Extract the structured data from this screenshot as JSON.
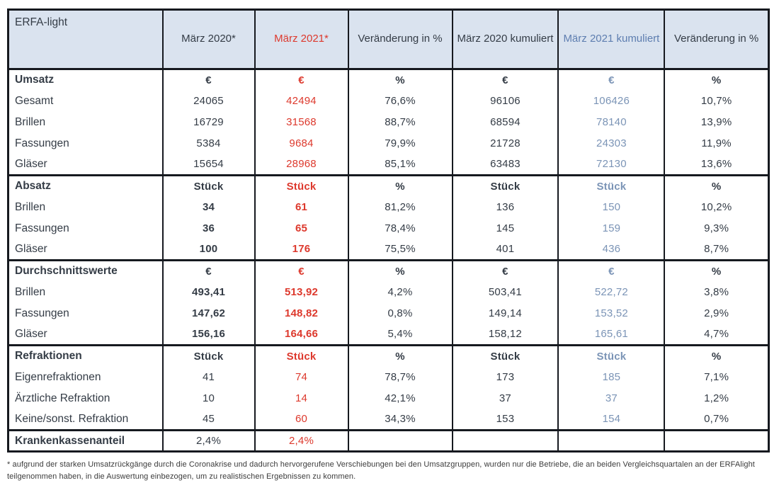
{
  "colors": {
    "header_bg": "#dae3ef",
    "border": "#16191f",
    "dark": "#343c46",
    "red": "#dd392d",
    "blue_header": "#5e7eb0",
    "blue_value": "#7b94b6",
    "footnote_color": "#3b3b3b"
  },
  "table": {
    "title": "ERFA-light",
    "columns": [
      {
        "label": "März 2020*",
        "tone": "dark"
      },
      {
        "label": "März 2021*",
        "tone": "red"
      },
      {
        "label": "Veränderung in %",
        "tone": "dark"
      },
      {
        "label": "März 2020 kumuliert",
        "tone": "dark"
      },
      {
        "label": "März 2021 kumuliert",
        "tone": "blue"
      },
      {
        "label": "Veränderung in %",
        "tone": "dark"
      }
    ],
    "sections": [
      {
        "name": "Umsatz",
        "unit_row": {
          "label": "Umsatz",
          "cells": [
            "€",
            "€",
            "%",
            "€",
            "€",
            "%"
          ]
        },
        "rows": [
          {
            "label": "Gesamt",
            "cells": [
              "24065",
              "42494",
              "76,6%",
              "96106",
              "106426",
              "10,7%"
            ]
          },
          {
            "label": "Brillen",
            "cells": [
              "16729",
              "31568",
              "88,7%",
              "68594",
              "78140",
              "13,9%"
            ]
          },
          {
            "label": "Fassungen",
            "cells": [
              "5384",
              "9684",
              "79,9%",
              "21728",
              "24303",
              "11,9%"
            ]
          },
          {
            "label": "Gläser",
            "cells": [
              "15654",
              "28968",
              "85,1%",
              "63483",
              "72130",
              "13,6%"
            ]
          }
        ]
      },
      {
        "name": "Absatz",
        "unit_row": {
          "label": "Absatz",
          "cells": [
            "Stück",
            "Stück",
            "%",
            "Stück",
            "Stück",
            "%"
          ]
        },
        "rows": [
          {
            "label": "Brillen",
            "cells": [
              "34",
              "61",
              "81,2%",
              "136",
              "150",
              "10,2%"
            ],
            "bold": [
              0,
              1
            ]
          },
          {
            "label": "Fassungen",
            "cells": [
              "36",
              "65",
              "78,4%",
              "145",
              "159",
              "9,3%"
            ],
            "bold": [
              0,
              1
            ]
          },
          {
            "label": "Gläser",
            "cells": [
              "100",
              "176",
              "75,5%",
              "401",
              "436",
              "8,7%"
            ],
            "bold": [
              0,
              1
            ]
          }
        ]
      },
      {
        "name": "Durchschnittswerte",
        "unit_row": {
          "label": "Durchschnittswerte",
          "cells": [
            "€",
            "€",
            "%",
            "€",
            "€",
            "%"
          ]
        },
        "rows": [
          {
            "label": "Brillen",
            "cells": [
              "493,41",
              "513,92",
              "4,2%",
              "503,41",
              "522,72",
              "3,8%"
            ],
            "bold": [
              0,
              1
            ]
          },
          {
            "label": "Fassungen",
            "cells": [
              "147,62",
              "148,82",
              "0,8%",
              "149,14",
              "153,52",
              "2,9%"
            ],
            "bold": [
              0,
              1
            ]
          },
          {
            "label": "Gläser",
            "cells": [
              "156,16",
              "164,66",
              "5,4%",
              "158,12",
              "165,61",
              "4,7%"
            ],
            "bold": [
              0,
              1
            ]
          }
        ]
      },
      {
        "name": "Refraktionen",
        "unit_row": {
          "label": "Refraktionen",
          "cells": [
            "Stück",
            "Stück",
            "%",
            "Stück",
            "Stück",
            "%"
          ]
        },
        "rows": [
          {
            "label": "Eigenrefraktionen",
            "cells": [
              "41",
              "74",
              "78,7%",
              "173",
              "185",
              "7,1%"
            ]
          },
          {
            "label": "Ärztliche Refraktion",
            "cells": [
              "10",
              "14",
              "42,1%",
              "37",
              "37",
              "1,2%"
            ]
          },
          {
            "label": "Keine/sonst. Refraktion",
            "cells": [
              "45",
              "60",
              "34,3%",
              "153",
              "154",
              "0,7%"
            ]
          }
        ]
      },
      {
        "name": "Krankenkassenanteil",
        "rows": [
          {
            "label": "Krankenkassenanteil",
            "label_bold": true,
            "cells": [
              "2,4%",
              "2,4%",
              "",
              "",
              "",
              ""
            ]
          }
        ]
      }
    ]
  },
  "footnote": "* aufgrund der starken Umsatzrückgänge durch die Coronakrise und dadurch hervorgerufene Verschiebungen bei den Umsatzgruppen, wurden nur die Betriebe, die an beiden Vergleichsquartalen an der ERFAlight teilgenommen haben, in die Auswertung einbezogen, um zu realistischen Ergebnissen zu kommen."
}
